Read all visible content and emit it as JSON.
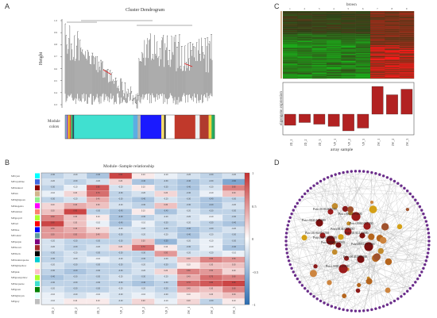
{
  "panels": {
    "a": {
      "letter": "A",
      "title": "Cluster Dendrogram",
      "ylabel": "Height",
      "yticks": [
        "1.0",
        "0.9",
        "0.8",
        "0.7",
        "0.6",
        "0.5",
        "0.4",
        "0.3"
      ],
      "module_label_1": "Module",
      "module_label_2": "colors",
      "module_color_bar": [
        {
          "color": "#7fb3d5",
          "w": 1
        },
        {
          "color": "#9b59b6",
          "w": 1
        },
        {
          "color": "#f1c40f",
          "w": 1
        },
        {
          "color": "#e74c3c",
          "w": 1
        },
        {
          "color": "#2ecc71",
          "w": 1
        },
        {
          "color": "#34495e",
          "w": 1
        },
        {
          "color": "#40e0d0",
          "w": 40
        },
        {
          "color": "#5dade2",
          "w": 3
        },
        {
          "color": "#b0b0b0",
          "w": 2
        },
        {
          "color": "#1a1aff",
          "w": 14
        },
        {
          "color": "#f7dc6f",
          "w": 2
        },
        {
          "color": "#222222",
          "w": 1
        },
        {
          "color": "#ffffff",
          "w": 6
        },
        {
          "color": "#c0392b",
          "w": 14
        },
        {
          "color": "#ecf0f1",
          "w": 3
        },
        {
          "color": "#b03a2e",
          "w": 6
        },
        {
          "color": "#f4d03f",
          "w": 2
        },
        {
          "color": "#27ae60",
          "w": 2
        }
      ]
    },
    "b": {
      "letter": "B",
      "title": "Module−Sample relationship",
      "modules": [
        "MEcyan",
        "MEroyalblue",
        "MEdarkred",
        "MEtan",
        "MElightgreen",
        "MEmagenta",
        "MEsalmon",
        "MEgreyell",
        "MEred",
        "MEblue",
        "MEcadetc",
        "MEpurple",
        "MEbrown",
        "MEblack",
        "MEdarkturquoise",
        "MElightyellow",
        "MEpink",
        "MEgreenyellow",
        "MEturquoise",
        "MEgreen",
        "MElightcyan",
        "MEgrey"
      ],
      "module_colors": [
        "#00ffff",
        "#4169e1",
        "#8b0000",
        "#d2b48c",
        "#90ee90",
        "#ff00ff",
        "#fa8072",
        "#adff2f",
        "#ff0000",
        "#0000ff",
        "#5f9ea0",
        "#800080",
        "#a52a2a",
        "#000000",
        "#00ced1",
        "#ffffe0",
        "#ffc0cb",
        "#adff2f",
        "#40e0d0",
        "#008000",
        "#e0ffff",
        "#bebebe"
      ],
      "samples": [
        "JD_1",
        "JD_2",
        "JD_3",
        "VP_1",
        "VP_2",
        "VP_3",
        "JW_1",
        "JW_2",
        "JW_3"
      ],
      "legend_ticks": [
        "1",
        "0.5",
        "0",
        "−0.5",
        "−1"
      ]
    },
    "c": {
      "letter": "C",
      "column_header": "brown",
      "column_numbers": [
        "1",
        "2",
        "3",
        "4",
        "5",
        "6",
        "7",
        "8",
        "9"
      ],
      "ylabel_1": "eigengene expression",
      "xlabel": "array sample",
      "samples": [
        "JD_1",
        "JD_2",
        "JD_3",
        "VP_1",
        "VP_2",
        "VP_3",
        "JW_1",
        "JW_2",
        "JW_3"
      ]
    },
    "d": {
      "letter": "D",
      "hub_genes": [
        "Potri.018G005500",
        "Potri.004G141000",
        "Potri.006G070200",
        "Potri.013G112000",
        "Potri.014G081500",
        "Potri.005G117000",
        "Potri.018G015200",
        "Potri.014G060300",
        "Potri.008G125600",
        "Potri.003G017000",
        "Potri.006G027200",
        "Potri.001G063500"
      ]
    }
  },
  "chart_data": [
    {
      "type": "heatmap",
      "title": "Module−Sample relationship",
      "rows": [
        "MEcyan",
        "MEroyalblue",
        "MEdarkred",
        "MEtan",
        "MElightgreen",
        "MEmagenta",
        "MEsalmon",
        "MEgreyell",
        "MEred",
        "MEblue",
        "MEcadetc",
        "MEpurple",
        "MEbrown",
        "MEblack",
        "MEdarkturquoise",
        "MElightyellow",
        "MEpink",
        "MEgreenyellow",
        "MEturquoise",
        "MEgreen",
        "MElightcyan",
        "MEgrey"
      ],
      "columns": [
        "JD_1",
        "JD_2",
        "JD_3",
        "VP_1",
        "VP_2",
        "VP_3",
        "JW_1",
        "JW_2",
        "JW_3"
      ],
      "values": [
        [
          -0.3,
          -0.2,
          -0.4,
          0.9,
          0.1,
          -0.1,
          -0.2,
          -0.3,
          -0.2
        ],
        [
          -0.2,
          -0.3,
          -0.2,
          0.2,
          -0.4,
          -0.3,
          -0.4,
          -0.3,
          -0.6
        ],
        [
          -0.3,
          -0.1,
          0.8,
          -0.2,
          0.1,
          -0.3,
          -0.4,
          -0.2,
          0.6
        ],
        [
          -0.1,
          0.2,
          0.7,
          -0.3,
          -0.2,
          0.2,
          -0.3,
          -0.1,
          0.3
        ],
        [
          -0.3,
          -0.2,
          0.4,
          -0.3,
          -0.4,
          -0.2,
          -0.3,
          -0.4,
          -0.3
        ],
        [
          0.2,
          0.4,
          0.3,
          -0.2,
          -0.3,
          0.3,
          -0.3,
          -0.4,
          -0.2
        ],
        [
          0.3,
          0.9,
          -0.3,
          -0.4,
          0.1,
          -0.4,
          -0.2,
          -0.3,
          -0.3
        ],
        [
          0.6,
          0.3,
          0.1,
          -0.4,
          -0.3,
          -0.2,
          -0.2,
          -0.1,
          -0.3
        ],
        [
          0.9,
          0.3,
          -0.1,
          -0.4,
          -0.1,
          -0.3,
          -0.2,
          -0.3,
          -0.4
        ],
        [
          0.5,
          0.4,
          0.2,
          -0.2,
          -0.2,
          -0.3,
          -0.4,
          -0.3,
          -0.2
        ],
        [
          0.5,
          0.5,
          0.4,
          -0.3,
          -0.2,
          -0.2,
          -0.4,
          -0.2,
          -0.3
        ],
        [
          -0.2,
          -0.3,
          -0.3,
          -0.3,
          0.3,
          -0.5,
          -0.2,
          -0.1,
          -0.3
        ],
        [
          -0.2,
          -0.3,
          -0.2,
          0.2,
          0.7,
          0.1,
          -0.3,
          -0.1,
          -0.4
        ],
        [
          -0.3,
          -0.2,
          -0.3,
          -0.3,
          -0.3,
          0.5,
          -0.2,
          -0.2,
          -0.1
        ],
        [
          -0.3,
          -0.2,
          -0.1,
          -0.2,
          -0.3,
          -0.2,
          0.3,
          0.6,
          0.5
        ],
        [
          -0.2,
          -0.3,
          -0.3,
          -0.3,
          -0.2,
          -0.3,
          0.1,
          0.3,
          0.3
        ],
        [
          -0.3,
          -0.4,
          -0.3,
          -0.3,
          -0.2,
          0.2,
          0.6,
          0.5,
          0.2
        ],
        [
          -0.4,
          -0.3,
          -0.3,
          -0.2,
          -0.3,
          -0.2,
          0.4,
          0.7,
          0.6
        ],
        [
          -0.3,
          -0.3,
          -0.3,
          -0.3,
          -0.4,
          -0.3,
          0.7,
          0.8,
          0.9
        ],
        [
          -0.2,
          -0.3,
          -0.3,
          -0.2,
          -0.2,
          -0.3,
          0.4,
          0.3,
          0.6
        ],
        [
          -0.1,
          -0.2,
          -0.1,
          -0.2,
          -0.1,
          -0.2,
          0.1,
          0.2,
          0.3
        ],
        [
          -0.1,
          0.1,
          0.1,
          -0.2,
          0.2,
          -0.1,
          0.2,
          -0.3,
          0.1
        ]
      ],
      "colorscale": {
        "low": "#2b6cb0",
        "mid": "#ffffff",
        "high": "#c53030"
      },
      "zlim": [
        -1,
        1
      ]
    },
    {
      "type": "bar",
      "categories": [
        "JD_1",
        "JD_2",
        "JD_3",
        "VP_1",
        "VP_2",
        "VP_3",
        "JW_1",
        "JW_2",
        "JW_3"
      ],
      "values": [
        -0.2,
        -0.15,
        -0.18,
        -0.22,
        -0.3,
        -0.25,
        0.5,
        0.35,
        0.45
      ],
      "xlabel": "array sample",
      "ylabel": "eigengene expression",
      "bar_color": "#b22222"
    }
  ]
}
